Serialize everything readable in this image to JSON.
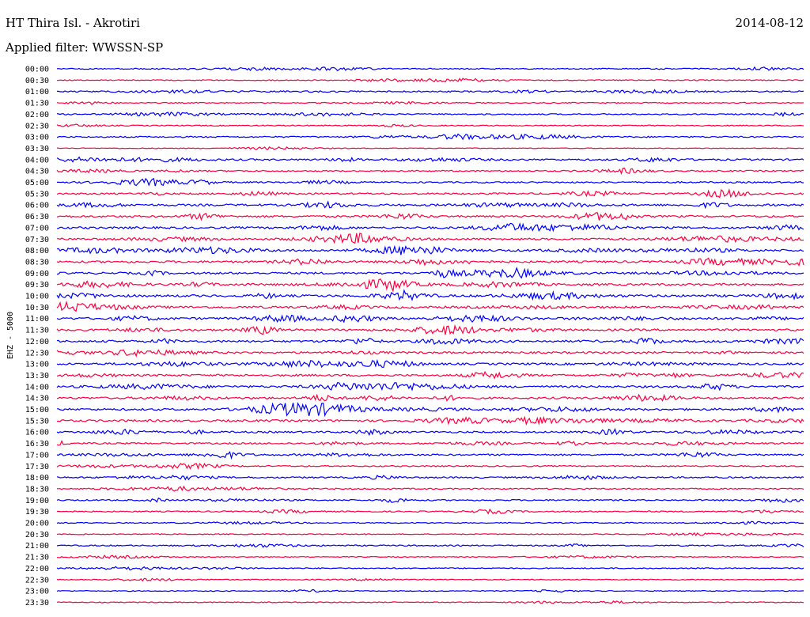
{
  "header": {
    "station": "HT Thira Isl. - Akrotiri",
    "date": "2014-08-12",
    "filter": "Applied filter: WWSSN-SP"
  },
  "chart_data": {
    "type": "line",
    "ylabel": "EHZ - 5000",
    "row_labels": [
      "00:00",
      "00:30",
      "01:00",
      "01:30",
      "02:00",
      "02:30",
      "03:00",
      "03:30",
      "04:00",
      "04:30",
      "05:00",
      "05:30",
      "06:00",
      "06:30",
      "07:00",
      "07:30",
      "08:00",
      "08:30",
      "09:00",
      "09:30",
      "10:00",
      "10:30",
      "11:00",
      "11:30",
      "12:00",
      "12:30",
      "13:00",
      "13:30",
      "14:00",
      "14:30",
      "15:00",
      "15:30",
      "16:00",
      "16:30",
      "17:00",
      "17:30",
      "18:00",
      "18:30",
      "19:00",
      "19:30",
      "20:00",
      "20:30",
      "21:00",
      "21:30",
      "22:00",
      "22:30",
      "23:00",
      "23:30"
    ],
    "series_colors": [
      "#0000ff",
      "#ff0040"
    ],
    "trace_duration_minutes": 30,
    "activity_level": [
      0.25,
      0.2,
      0.4,
      0.2,
      0.3,
      0.2,
      0.35,
      0.1,
      0.45,
      0.35,
      0.4,
      0.45,
      0.6,
      0.55,
      0.6,
      0.6,
      0.65,
      0.6,
      0.6,
      0.6,
      0.7,
      0.65,
      0.65,
      0.6,
      0.65,
      0.55,
      0.6,
      0.6,
      0.6,
      0.55,
      0.6,
      0.6,
      0.5,
      0.45,
      0.45,
      0.3,
      0.4,
      0.3,
      0.35,
      0.3,
      0.2,
      0.15,
      0.3,
      0.15,
      0.2,
      0.15,
      0.15,
      0.15
    ]
  }
}
